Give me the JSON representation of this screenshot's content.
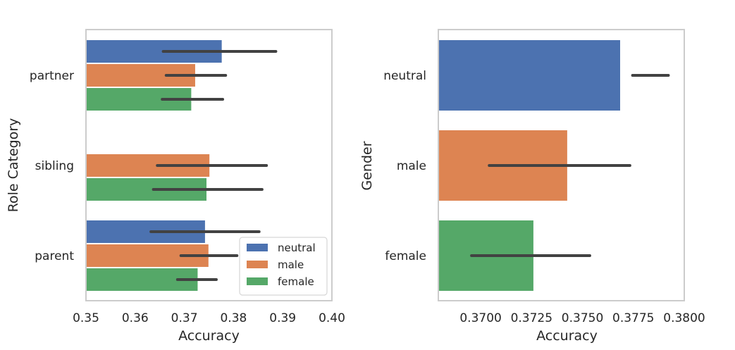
{
  "chart_data": [
    {
      "type": "bar",
      "orientation": "horizontal",
      "title": "",
      "xlabel": "Accuracy",
      "ylabel": "Role Category",
      "xlim": [
        0.35,
        0.4
      ],
      "xticks": [
        "0.35",
        "0.36",
        "0.37",
        "0.38",
        "0.39",
        "0.40"
      ],
      "categories": [
        "partner",
        "sibling",
        "parent"
      ],
      "legend_position": "bottom-right",
      "grid": false,
      "series": [
        {
          "name": "neutral",
          "color": "#4c72b0",
          "values": [
            0.3776,
            null,
            0.3742
          ],
          "ci_low": [
            0.3657,
            null,
            0.3632
          ],
          "ci_high": [
            0.3886,
            null,
            0.3852
          ]
        },
        {
          "name": "male",
          "color": "#dd8452",
          "values": [
            0.3722,
            0.3751,
            0.3749
          ],
          "ci_low": [
            0.3663,
            0.3645,
            0.3693
          ],
          "ci_high": [
            0.3784,
            0.3867,
            0.3807
          ]
        },
        {
          "name": "female",
          "color": "#55a868",
          "values": [
            0.3714,
            0.3745,
            0.3727
          ],
          "ci_low": [
            0.3655,
            0.3637,
            0.3686
          ],
          "ci_high": [
            0.3778,
            0.3858,
            0.3765
          ]
        }
      ]
    },
    {
      "type": "bar",
      "orientation": "horizontal",
      "title": "",
      "xlabel": "Accuracy",
      "ylabel": "Gender",
      "xlim": [
        0.36792,
        0.38
      ],
      "xticks": [
        "0.3700",
        "0.3725",
        "0.3750",
        "0.3775",
        "0.3800"
      ],
      "categories": [
        "neutral",
        "male",
        "female"
      ],
      "colors": [
        "#4c72b0",
        "#dd8452",
        "#55a868"
      ],
      "grid": false,
      "values": [
        0.37685,
        0.37425,
        0.37259
      ],
      "ci_low": [
        0.37746,
        0.37042,
        0.36955
      ],
      "ci_high": [
        0.37922,
        0.37733,
        0.37536
      ]
    }
  ]
}
